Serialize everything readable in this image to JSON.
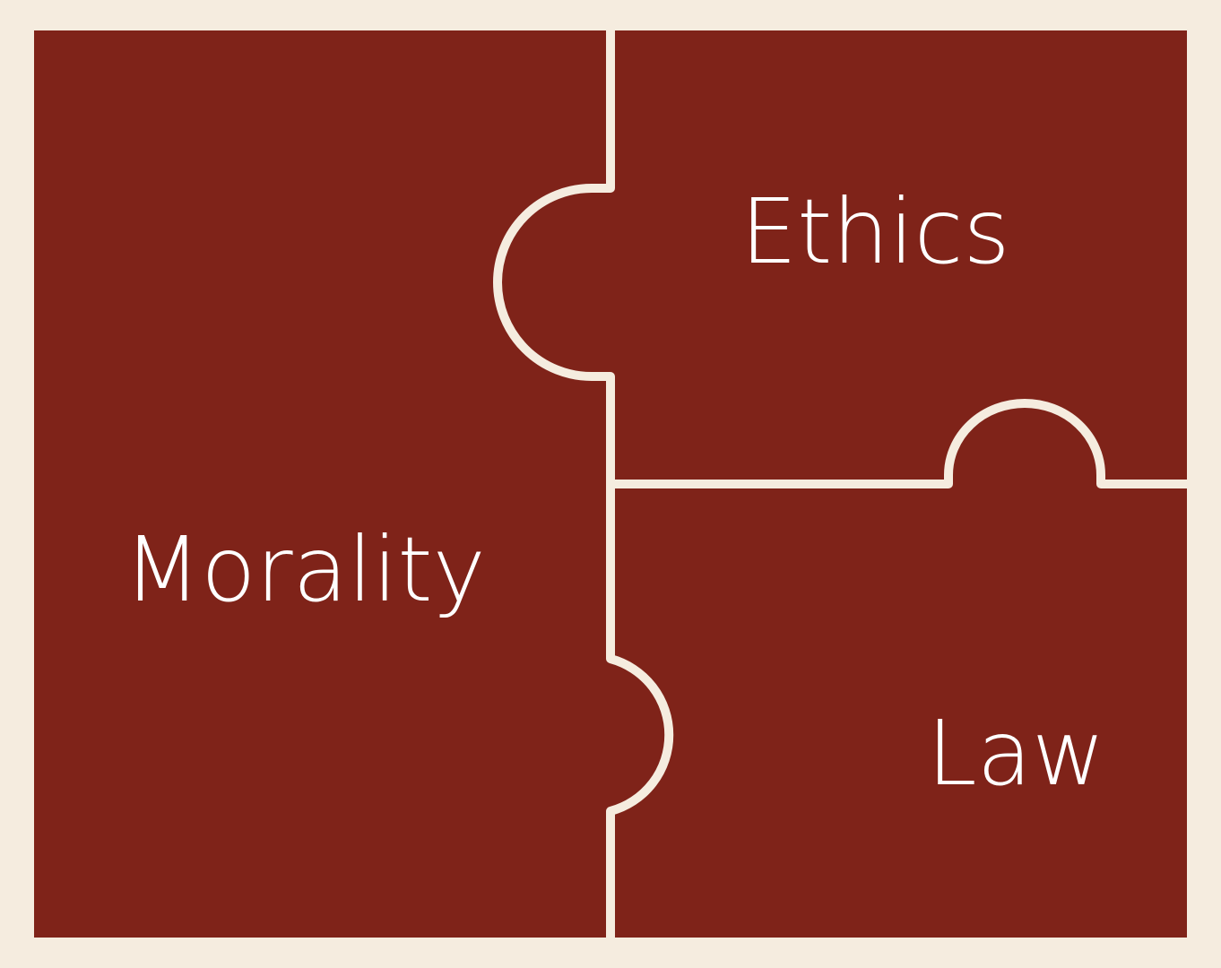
{
  "colors": {
    "background": "#f5ecdf",
    "piece_fill": "#7f2319",
    "seam": "#f5ecdf",
    "label_text": "#ffffff"
  },
  "pieces": [
    {
      "id": "morality",
      "label": "Morality"
    },
    {
      "id": "ethics",
      "label": "Ethics"
    },
    {
      "id": "law",
      "label": "Law"
    }
  ]
}
